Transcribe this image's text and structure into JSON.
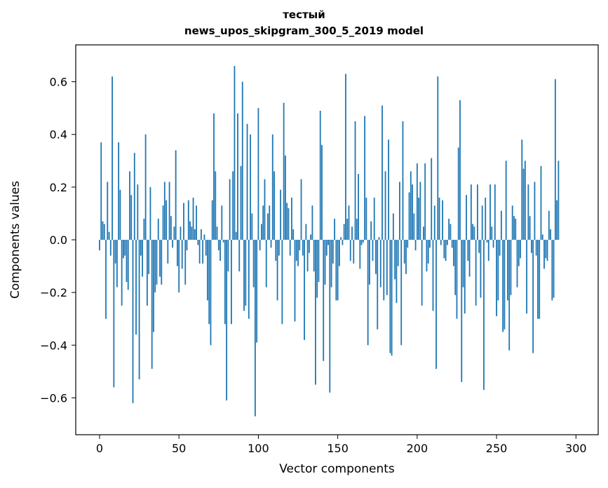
{
  "chart_data": {
    "type": "bar",
    "title_lines": [
      "тестый",
      "news_upos_skipgram_300_5_2019 model"
    ],
    "xlabel": "Vector components",
    "ylabel": "Components values",
    "xlim": [
      -15,
      314
    ],
    "ylim": [
      -0.74,
      0.74
    ],
    "xticks": [
      0,
      50,
      100,
      150,
      200,
      250,
      300
    ],
    "yticks": [
      -0.6,
      -0.4,
      -0.2,
      0.0,
      0.2,
      0.4,
      0.6
    ],
    "ytick_labels": [
      "−0.6",
      "−0.4",
      "−0.2",
      "0.0",
      "0.2",
      "0.4",
      "0.6"
    ],
    "bar_color": "#1f77b4",
    "grid": false,
    "values": [
      -0.04,
      0.37,
      0.07,
      0.06,
      -0.3,
      0.22,
      0.03,
      -0.06,
      0.62,
      -0.56,
      -0.09,
      -0.18,
      0.37,
      0.19,
      -0.25,
      -0.07,
      -0.06,
      -0.16,
      -0.19,
      0.26,
      0.17,
      -0.62,
      0.33,
      -0.36,
      0.21,
      -0.53,
      -0.06,
      -0.14,
      0.08,
      0.4,
      -0.25,
      -0.13,
      0.2,
      -0.49,
      -0.35,
      -0.2,
      -0.17,
      0.08,
      -0.14,
      -0.17,
      0.13,
      0.22,
      0.15,
      -0.09,
      0.22,
      0.09,
      -0.03,
      0.05,
      0.34,
      -0.1,
      -0.2,
      0.05,
      -0.11,
      0.14,
      -0.17,
      -0.04,
      0.15,
      0.07,
      0.05,
      0.16,
      0.04,
      0.13,
      -0.02,
      -0.09,
      0.04,
      -0.09,
      0.02,
      -0.06,
      -0.23,
      -0.32,
      -0.4,
      0.15,
      0.48,
      0.26,
      0.05,
      -0.04,
      -0.08,
      0.13,
      -0.01,
      -0.32,
      -0.61,
      -0.12,
      0.23,
      -0.32,
      0.26,
      0.66,
      0.03,
      0.48,
      -0.12,
      0.28,
      0.6,
      -0.27,
      -0.25,
      0.44,
      -0.3,
      0.4,
      0.1,
      -0.18,
      -0.67,
      -0.39,
      0.5,
      -0.04,
      0.06,
      0.13,
      0.23,
      -0.18,
      0.1,
      0.13,
      -0.03,
      0.4,
      0.26,
      -0.08,
      -0.23,
      -0.06,
      0.19,
      -0.32,
      0.52,
      0.32,
      0.14,
      0.12,
      -0.06,
      0.16,
      0.04,
      -0.31,
      -0.08,
      -0.1,
      -0.04,
      0.23,
      -0.06,
      -0.38,
      0.06,
      -0.12,
      -0.05,
      0.02,
      0.13,
      -0.12,
      -0.55,
      -0.22,
      -0.16,
      0.49,
      0.36,
      -0.46,
      -0.17,
      -0.06,
      -0.02,
      -0.58,
      -0.18,
      -0.09,
      0.08,
      -0.23,
      -0.23,
      -0.1,
      0.01,
      -0.02,
      0.06,
      0.63,
      0.08,
      0.13,
      -0.08,
      0.05,
      -0.09,
      0.45,
      0.08,
      0.25,
      -0.11,
      -0.02,
      -0.01,
      0.47,
      0.16,
      -0.4,
      -0.17,
      0.07,
      -0.08,
      0.16,
      -0.13,
      -0.34,
      0.01,
      -0.18,
      0.51,
      -0.23,
      0.26,
      -0.21,
      0.38,
      -0.43,
      -0.44,
      0.1,
      -0.15,
      -0.24,
      -0.1,
      0.22,
      -0.4,
      0.45,
      -0.09,
      -0.13,
      -0.03,
      0.18,
      0.26,
      0.21,
      0.1,
      -0.04,
      0.29,
      0.16,
      0.22,
      -0.25,
      0.05,
      0.29,
      -0.12,
      -0.09,
      -0.03,
      0.31,
      -0.27,
      0.13,
      -0.49,
      0.62,
      0.16,
      -0.02,
      0.15,
      -0.07,
      -0.08,
      -0.02,
      0.08,
      0.06,
      -0.03,
      -0.1,
      -0.21,
      -0.3,
      0.35,
      0.53,
      -0.54,
      -0.18,
      -0.28,
      0.17,
      -0.08,
      -0.14,
      0.21,
      0.06,
      0.05,
      -0.25,
      0.21,
      -0.05,
      -0.22,
      0.13,
      -0.57,
      0.16,
      -0.01,
      -0.08,
      0.21,
      0.05,
      -0.03,
      0.21,
      -0.29,
      -0.23,
      -0.06,
      0.11,
      -0.35,
      -0.34,
      0.3,
      -0.23,
      -0.42,
      -0.21,
      0.13,
      0.09,
      0.08,
      -0.18,
      -0.1,
      -0.07,
      0.38,
      0.27,
      0.3,
      -0.28,
      0.21,
      0.09,
      -0.05,
      -0.43,
      0.22,
      -0.06,
      -0.3,
      -0.3,
      0.28,
      0.02,
      -0.11,
      -0.07,
      -0.08,
      0.11,
      0.04,
      -0.23,
      -0.22,
      0.61,
      0.15,
      0.3
    ]
  }
}
